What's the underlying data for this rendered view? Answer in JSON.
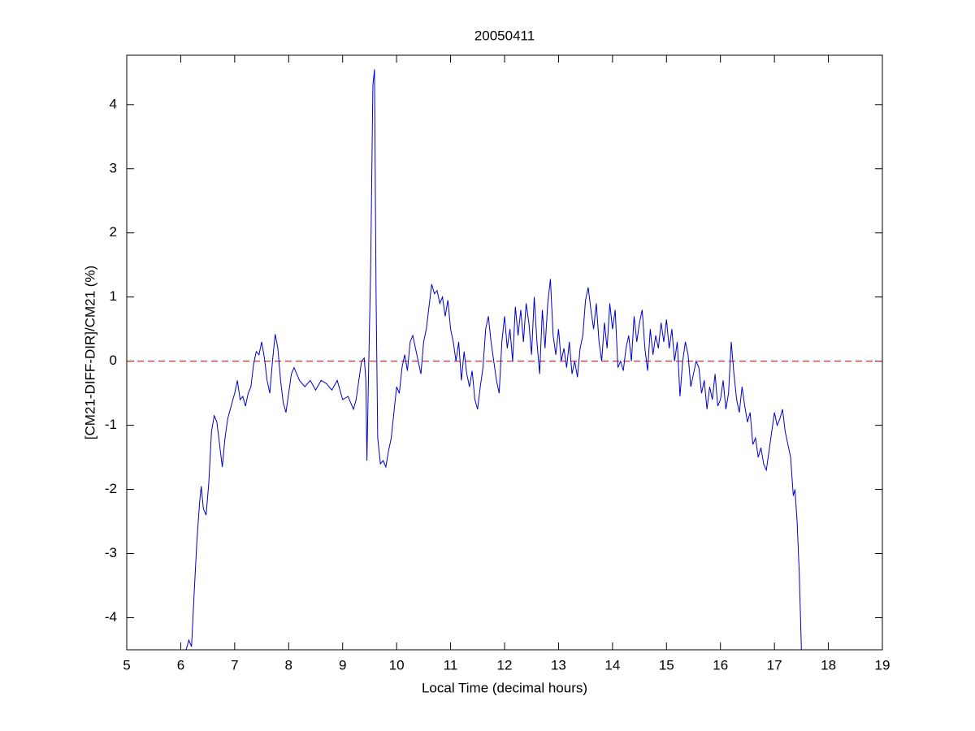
{
  "chart_data": {
    "type": "line",
    "title": "20050411",
    "xlabel": "Local Time (decimal hours)",
    "ylabel": "[CM21-DIFF-DIR]/CM21 (%)",
    "x": [
      6.1,
      6.15,
      6.2,
      6.25,
      6.3,
      6.35,
      6.38,
      6.42,
      6.47,
      6.52,
      6.57,
      6.62,
      6.67,
      6.72,
      6.77,
      6.82,
      6.87,
      6.95,
      7.0,
      7.05,
      7.1,
      7.15,
      7.2,
      7.25,
      7.3,
      7.35,
      7.4,
      7.45,
      7.5,
      7.55,
      7.6,
      7.65,
      7.7,
      7.75,
      7.8,
      7.85,
      7.9,
      7.95,
      8.0,
      8.05,
      8.1,
      8.15,
      8.2,
      8.3,
      8.4,
      8.5,
      8.6,
      8.7,
      8.8,
      8.9,
      9.0,
      9.1,
      9.2,
      9.25,
      9.3,
      9.35,
      9.4,
      9.43,
      9.45,
      9.48,
      9.52,
      9.56,
      9.59,
      9.62,
      9.65,
      9.7,
      9.75,
      9.8,
      9.85,
      9.9,
      9.95,
      10.0,
      10.05,
      10.1,
      10.15,
      10.2,
      10.25,
      10.3,
      10.35,
      10.4,
      10.45,
      10.5,
      10.55,
      10.6,
      10.65,
      10.7,
      10.75,
      10.8,
      10.85,
      10.9,
      10.95,
      11.0,
      11.05,
      11.1,
      11.15,
      11.2,
      11.25,
      11.3,
      11.35,
      11.4,
      11.45,
      11.5,
      11.55,
      11.6,
      11.65,
      11.7,
      11.75,
      11.8,
      11.85,
      11.9,
      11.95,
      12.0,
      12.05,
      12.1,
      12.15,
      12.2,
      12.25,
      12.3,
      12.35,
      12.4,
      12.45,
      12.5,
      12.55,
      12.6,
      12.65,
      12.7,
      12.75,
      12.8,
      12.85,
      12.9,
      12.95,
      13.0,
      13.05,
      13.1,
      13.15,
      13.2,
      13.25,
      13.3,
      13.35,
      13.4,
      13.45,
      13.5,
      13.55,
      13.6,
      13.65,
      13.7,
      13.75,
      13.8,
      13.85,
      13.9,
      13.95,
      14.0,
      14.05,
      14.1,
      14.15,
      14.2,
      14.25,
      14.3,
      14.35,
      14.4,
      14.45,
      14.5,
      14.55,
      14.6,
      14.65,
      14.7,
      14.75,
      14.8,
      14.85,
      14.9,
      14.95,
      15.0,
      15.05,
      15.1,
      15.15,
      15.2,
      15.25,
      15.3,
      15.35,
      15.4,
      15.45,
      15.5,
      15.55,
      15.6,
      15.65,
      15.7,
      15.75,
      15.8,
      15.85,
      15.9,
      15.95,
      16.0,
      16.05,
      16.1,
      16.15,
      16.2,
      16.25,
      16.3,
      16.35,
      16.4,
      16.45,
      16.5,
      16.55,
      16.6,
      16.65,
      16.7,
      16.75,
      16.8,
      16.85,
      16.9,
      16.95,
      17.0,
      17.05,
      17.1,
      17.15,
      17.2,
      17.25,
      17.3,
      17.35,
      17.38,
      17.42,
      17.46,
      17.5
    ],
    "series": [
      {
        "color": "#0000cc",
        "values": [
          -4.5,
          -4.35,
          -4.45,
          -3.6,
          -2.8,
          -2.2,
          -1.95,
          -2.3,
          -2.4,
          -1.9,
          -1.1,
          -0.85,
          -0.95,
          -1.3,
          -1.65,
          -1.2,
          -0.9,
          -0.65,
          -0.5,
          -0.3,
          -0.6,
          -0.55,
          -0.7,
          -0.5,
          -0.4,
          -0.05,
          0.15,
          0.1,
          0.3,
          0.05,
          -0.3,
          -0.5,
          0.0,
          0.42,
          0.2,
          -0.3,
          -0.65,
          -0.8,
          -0.5,
          -0.2,
          -0.1,
          -0.2,
          -0.3,
          -0.4,
          -0.3,
          -0.45,
          -0.3,
          -0.35,
          -0.45,
          -0.3,
          -0.6,
          -0.55,
          -0.75,
          -0.6,
          -0.3,
          0.0,
          0.05,
          -0.3,
          -1.55,
          -0.2,
          1.5,
          4.3,
          4.55,
          1.0,
          -1.2,
          -1.6,
          -1.55,
          -1.65,
          -1.4,
          -1.2,
          -0.8,
          -0.4,
          -0.5,
          -0.1,
          0.1,
          -0.15,
          0.3,
          0.4,
          0.2,
          0.0,
          -0.2,
          0.3,
          0.5,
          0.85,
          1.2,
          1.05,
          1.1,
          0.9,
          1.0,
          0.7,
          0.95,
          0.5,
          0.3,
          0.0,
          0.3,
          -0.3,
          0.15,
          -0.2,
          -0.4,
          -0.15,
          -0.6,
          -0.75,
          -0.4,
          -0.1,
          0.5,
          0.7,
          0.3,
          0.0,
          -0.3,
          -0.5,
          0.3,
          0.7,
          0.2,
          0.5,
          0.0,
          0.85,
          0.4,
          0.8,
          0.3,
          0.9,
          0.6,
          0.1,
          1.0,
          0.3,
          -0.2,
          0.8,
          0.2,
          0.9,
          1.28,
          0.4,
          0.1,
          0.5,
          0.0,
          0.2,
          -0.1,
          0.3,
          -0.2,
          0.0,
          -0.25,
          0.2,
          0.4,
          0.95,
          1.15,
          0.8,
          0.5,
          0.9,
          0.3,
          0.0,
          0.6,
          0.2,
          0.9,
          0.5,
          0.8,
          -0.1,
          0.0,
          -0.15,
          0.2,
          0.4,
          0.0,
          0.7,
          0.3,
          0.6,
          0.8,
          0.2,
          -0.15,
          0.5,
          0.1,
          0.4,
          0.2,
          0.6,
          0.3,
          0.65,
          0.2,
          0.5,
          0.0,
          0.3,
          -0.55,
          0.0,
          0.3,
          0.1,
          -0.4,
          -0.2,
          0.0,
          -0.1,
          -0.5,
          -0.3,
          -0.75,
          -0.4,
          -0.6,
          -0.2,
          -0.7,
          -0.6,
          -0.3,
          -0.75,
          -0.5,
          0.3,
          -0.2,
          -0.6,
          -0.8,
          -0.4,
          -0.7,
          -0.95,
          -0.8,
          -1.3,
          -1.2,
          -1.5,
          -1.35,
          -1.6,
          -1.7,
          -1.4,
          -1.1,
          -0.8,
          -1.0,
          -0.9,
          -0.75,
          -1.1,
          -1.3,
          -1.5,
          -2.1,
          -2.0,
          -2.5,
          -3.3,
          -4.5
        ]
      }
    ],
    "hline": {
      "value": 0,
      "color": "#cc3333",
      "dashed": true
    },
    "xlim": [
      5,
      19
    ],
    "xticks": [
      5,
      6,
      7,
      8,
      9,
      10,
      11,
      12,
      13,
      14,
      15,
      16,
      17,
      18,
      19
    ],
    "ylim": [
      -4.5,
      4.77
    ],
    "yticks": [
      -4,
      -3,
      -2,
      -1,
      0,
      1,
      2,
      3,
      4
    ]
  }
}
